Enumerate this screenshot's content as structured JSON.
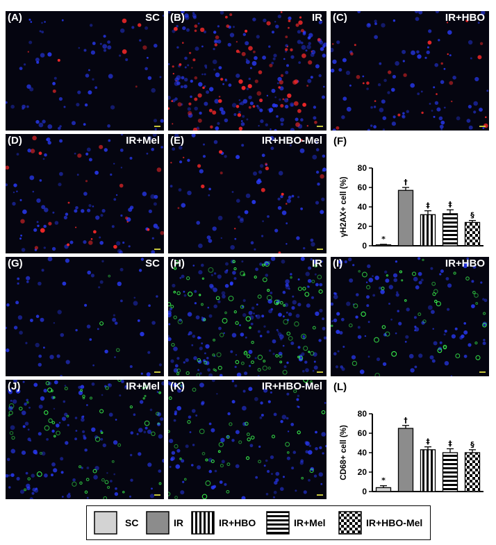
{
  "panels": [
    {
      "id": "A",
      "label": "(A)",
      "title": "SC",
      "stain": "red",
      "density": 0.05
    },
    {
      "id": "B",
      "label": "(B)",
      "title": "IR",
      "stain": "red",
      "density": 0.55
    },
    {
      "id": "C",
      "label": "(C)",
      "title": "IR+HBO",
      "stain": "red",
      "density": 0.15
    },
    {
      "id": "D",
      "label": "(D)",
      "title": "IR+Mel",
      "stain": "red",
      "density": 0.15
    },
    {
      "id": "E",
      "label": "(E)",
      "title": "IR+HBO-Mel",
      "stain": "red",
      "density": 0.1
    },
    {
      "id": "G",
      "label": "(G)",
      "title": "SC",
      "stain": "green",
      "density": 0.02
    },
    {
      "id": "H",
      "label": "(H)",
      "title": "IR",
      "stain": "green",
      "density": 0.55
    },
    {
      "id": "I",
      "label": "(I)",
      "title": "IR+HBO",
      "stain": "green",
      "density": 0.25
    },
    {
      "id": "J",
      "label": "(J)",
      "title": "IR+Mel",
      "stain": "green",
      "density": 0.35
    },
    {
      "id": "K",
      "label": "(K)",
      "title": "IR+HBO-Mel",
      "stain": "green",
      "density": 0.25
    }
  ],
  "chart_data": [
    {
      "panel_label": "(F)",
      "type": "bar",
      "categories": [
        "SC",
        "IR",
        "IR+HBO",
        "IR+Mel",
        "IR+HBO-Mel"
      ],
      "values": [
        1,
        57,
        32,
        33,
        24
      ],
      "errors": [
        0.5,
        3,
        4,
        4,
        2
      ],
      "annotations": [
        "*",
        "†",
        "‡",
        "‡",
        "§"
      ],
      "ylabel": "γH2AX+ cell (%)",
      "ylim": [
        0,
        80
      ],
      "yticks": [
        "0",
        "20",
        "40",
        "60",
        "80"
      ]
    },
    {
      "panel_label": "(L)",
      "type": "bar",
      "categories": [
        "SC",
        "IR",
        "IR+HBO",
        "IR+Mel",
        "IR+HBO-Mel"
      ],
      "values": [
        4,
        65,
        43,
        40,
        40
      ],
      "errors": [
        2,
        3,
        3,
        4,
        3
      ],
      "annotations": [
        "*",
        "†",
        "‡",
        "‡",
        "§"
      ],
      "ylabel": "CD68+ cell (%)",
      "ylim": [
        0,
        80
      ],
      "yticks": [
        "0",
        "20",
        "40",
        "60",
        "80"
      ]
    }
  ],
  "legend": [
    {
      "label": "SC",
      "pattern": "light-gray",
      "color": "#d3d3d3"
    },
    {
      "label": "IR",
      "pattern": "dark-gray",
      "color": "#8c8c8c"
    },
    {
      "label": "IR+HBO",
      "pattern": "vertical-stripes",
      "color": "#000000"
    },
    {
      "label": "IR+Mel",
      "pattern": "horizontal-stripes",
      "color": "#000000"
    },
    {
      "label": "IR+HBO-Mel",
      "pattern": "checker",
      "color": "#000000"
    }
  ],
  "colors": {
    "nuclei": "#2a3cff",
    "red_stain": "#ff2a2a",
    "green_stain": "#3cff50",
    "scale_bar": "#c8c83c"
  }
}
